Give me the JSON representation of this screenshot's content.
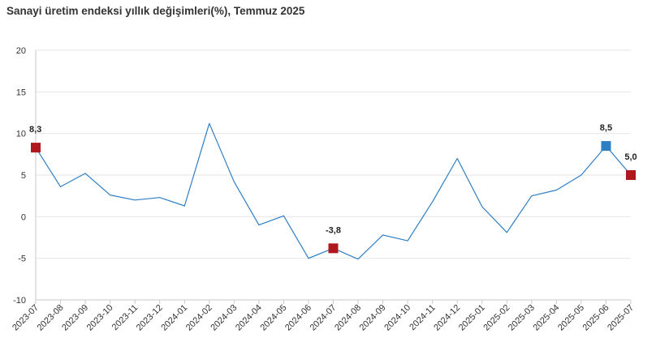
{
  "title": "Sanayi üretim endeksi yıllık değişimleri(%), Temmuz 2025",
  "colors": {
    "line": "#2E7EC4",
    "marker_red": "#B0171F",
    "marker_blue": "#2E7EC4",
    "grid": "#e6e6e6",
    "axis": "#c8c8c8"
  },
  "chart_data": {
    "type": "line",
    "title": "Sanayi üretim endeksi yıllık değişimleri(%), Temmuz 2025",
    "xlabel": "",
    "ylabel": "",
    "ylim": [
      -10,
      20
    ],
    "yticks": [
      20,
      15,
      10,
      5,
      0,
      -5,
      -10
    ],
    "grid": "horizontal",
    "legend": "none",
    "categories": [
      "2023-07",
      "2023-08",
      "2023-09",
      "2023-10",
      "2023-11",
      "2023-12",
      "2024-01",
      "2024-02",
      "2024-03",
      "2024-04",
      "2024-05",
      "2024-06",
      "2024-07",
      "2024-08",
      "2024-09",
      "2024-10",
      "2024-11",
      "2024-12",
      "2025-01",
      "2025-02",
      "2025-03",
      "2025-04",
      "2025-05",
      "2025-06",
      "2025-07"
    ],
    "series": [
      {
        "values": [
          8.3,
          3.6,
          5.2,
          2.6,
          2.0,
          2.3,
          1.3,
          11.2,
          4.2,
          -1.0,
          0.1,
          -5.0,
          -3.8,
          -5.1,
          -2.2,
          -2.9,
          1.8,
          7.0,
          1.2,
          -1.9,
          2.5,
          3.2,
          5.0,
          8.5,
          5.0
        ]
      }
    ],
    "annotations": [
      {
        "index": 0,
        "label": "8,3",
        "marker": "red"
      },
      {
        "index": 12,
        "label": "-3,8",
        "marker": "red"
      },
      {
        "index": 23,
        "label": "8,5",
        "marker": "blue"
      },
      {
        "index": 24,
        "label": "5,0",
        "marker": "red"
      }
    ]
  }
}
